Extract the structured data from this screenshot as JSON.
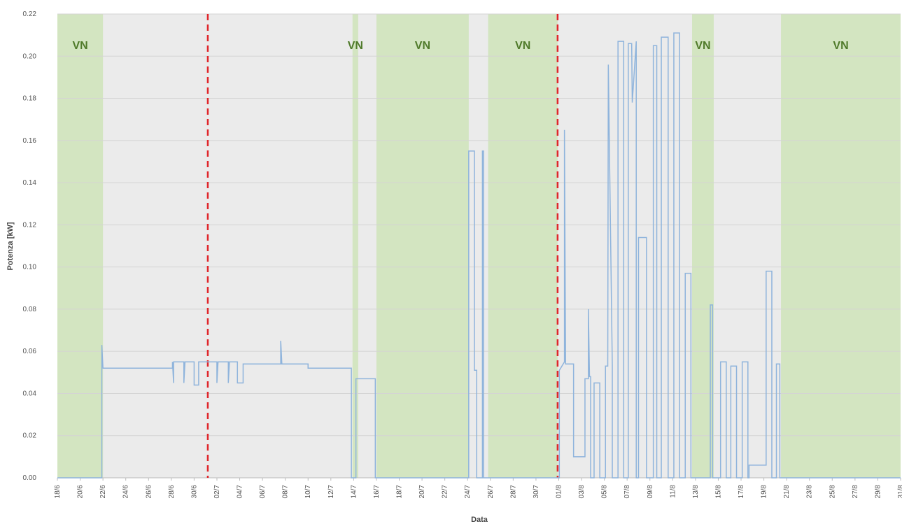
{
  "chart_data": {
    "type": "line",
    "y_label": "Potenza [kW]",
    "x_label": "Data",
    "xlim": [
      0,
      74
    ],
    "ylim": [
      0,
      0.22
    ],
    "yticks": [
      {
        "value": 0,
        "label": "0.00"
      },
      {
        "value": 0.02,
        "label": "0.02"
      },
      {
        "value": 0.04,
        "label": "0.04"
      },
      {
        "value": 0.06,
        "label": "0.06"
      },
      {
        "value": 0.08,
        "label": "0.08"
      },
      {
        "value": 0.1,
        "label": "0.10"
      },
      {
        "value": 0.12,
        "label": "0.12"
      },
      {
        "value": 0.14,
        "label": "0.14"
      },
      {
        "value": 0.16,
        "label": "0.16"
      },
      {
        "value": 0.18,
        "label": "0.18"
      },
      {
        "value": 0.2,
        "label": "0.20"
      },
      {
        "value": 0.22,
        "label": "0.22"
      }
    ],
    "xticks": [
      {
        "value": 0,
        "label": "18/6"
      },
      {
        "value": 2,
        "label": "20/6"
      },
      {
        "value": 4,
        "label": "22/6"
      },
      {
        "value": 6,
        "label": "24/6"
      },
      {
        "value": 8,
        "label": "26/6"
      },
      {
        "value": 10,
        "label": "28/6"
      },
      {
        "value": 12,
        "label": "30/6"
      },
      {
        "value": 14,
        "label": "02/7"
      },
      {
        "value": 16,
        "label": "04/7"
      },
      {
        "value": 18,
        "label": "06/7"
      },
      {
        "value": 20,
        "label": "08/7"
      },
      {
        "value": 22,
        "label": "10/7"
      },
      {
        "value": 24,
        "label": "12/7"
      },
      {
        "value": 26,
        "label": "14/7"
      },
      {
        "value": 28,
        "label": "16/7"
      },
      {
        "value": 30,
        "label": "18/7"
      },
      {
        "value": 32,
        "label": "20/7"
      },
      {
        "value": 34,
        "label": "22/7"
      },
      {
        "value": 36,
        "label": "24/7"
      },
      {
        "value": 38,
        "label": "26/7"
      },
      {
        "value": 40,
        "label": "28/7"
      },
      {
        "value": 42,
        "label": "30/7"
      },
      {
        "value": 44,
        "label": "01/8"
      },
      {
        "value": 46,
        "label": "03/8"
      },
      {
        "value": 48,
        "label": "05/8"
      },
      {
        "value": 50,
        "label": "07/8"
      },
      {
        "value": 52,
        "label": "09/8"
      },
      {
        "value": 54,
        "label": "11/8"
      },
      {
        "value": 56,
        "label": "13/8"
      },
      {
        "value": 58,
        "label": "15/8"
      },
      {
        "value": 60,
        "label": "17/8"
      },
      {
        "value": 62,
        "label": "19/8"
      },
      {
        "value": 64,
        "label": "21/8"
      },
      {
        "value": 66,
        "label": "23/8"
      },
      {
        "value": 68,
        "label": "25/8"
      },
      {
        "value": 70,
        "label": "27/8"
      },
      {
        "value": 72,
        "label": "29/8"
      },
      {
        "value": 74,
        "label": "31/8"
      }
    ],
    "grid": true,
    "background": "#ebebeb",
    "region_color": "#d3e5c1",
    "label_color": "#4f7a2a",
    "regions": [
      {
        "start": 0,
        "end": 4,
        "label": "VN"
      },
      {
        "start": 25.9,
        "end": 26.4,
        "label": "VN"
      },
      {
        "start": 28,
        "end": 36.1,
        "label": "VN"
      },
      {
        "start": 37.8,
        "end": 43.9,
        "label": "VN"
      },
      {
        "start": 55.7,
        "end": 57.6,
        "label": "VN"
      },
      {
        "start": 63.5,
        "end": 74,
        "label": "VN"
      }
    ],
    "vlines": [
      13.2,
      43.9
    ],
    "vline_color": "#e0262b",
    "series": [
      {
        "color": "#8fb4dc",
        "x": [
          0,
          3.9,
          3.9,
          4,
          10.1,
          10.1,
          10.2,
          10.2,
          11.1,
          11.1,
          11.2,
          11.2,
          12,
          12,
          12.4,
          12.4,
          14,
          14,
          14.1,
          14.1,
          15,
          15,
          15.1,
          15.1,
          15.8,
          15.8,
          16.3,
          16.3,
          19.6,
          19.6,
          19.7,
          22,
          22,
          25.8,
          25.8,
          26.2,
          26.2,
          27.9,
          27.9,
          36.1,
          36.1,
          36.6,
          36.6,
          36.8,
          36.8,
          37.3,
          37.3,
          37.4,
          37.4,
          44.05,
          44.05,
          44.5,
          44.5,
          44.6,
          45.3,
          45.3,
          46.3,
          46.3,
          46.6,
          46.6,
          46.7,
          46.8,
          46.8,
          47.1,
          47.1,
          47.6,
          47.6,
          48.1,
          48.1,
          48.3,
          48.35,
          48.7,
          48.7,
          49.2,
          49.2,
          49.7,
          49.7,
          50.1,
          50.1,
          50.4,
          50.45,
          50.8,
          50.8,
          51,
          51,
          51.7,
          51.7,
          52.3,
          52.3,
          52.6,
          52.6,
          53,
          53,
          53.6,
          53.6,
          54.1,
          54.1,
          54.6,
          54.6,
          55.1,
          55.1,
          55.6,
          55.6,
          57.3,
          57.3,
          57.5,
          57.5,
          58.2,
          58.2,
          58.7,
          58.7,
          59.1,
          59.1,
          59.6,
          59.6,
          60.1,
          60.1,
          60.6,
          60.6,
          60.7,
          60.7,
          62.2,
          62.2,
          62.7,
          62.7,
          63.1,
          63.1,
          63.4,
          63.4,
          74
        ],
        "values": [
          0,
          0,
          0.063,
          0.052,
          0.052,
          0.055,
          0.045,
          0.055,
          0.055,
          0.045,
          0.055,
          0.055,
          0.055,
          0.044,
          0.044,
          0.055,
          0.055,
          0.045,
          0.055,
          0.055,
          0.055,
          0.045,
          0.055,
          0.055,
          0.055,
          0.045,
          0.045,
          0.054,
          0.054,
          0.065,
          0.054,
          0.054,
          0.052,
          0.052,
          0,
          0,
          0.047,
          0.047,
          0,
          0,
          0.155,
          0.155,
          0.051,
          0.051,
          0,
          0,
          0.155,
          0.155,
          0,
          0,
          0.051,
          0.055,
          0.165,
          0.054,
          0.054,
          0.01,
          0.01,
          0.047,
          0.047,
          0.08,
          0.048,
          0.048,
          0,
          0,
          0.045,
          0.045,
          0,
          0,
          0.053,
          0.053,
          0.196,
          0.053,
          0,
          0,
          0.207,
          0.207,
          0,
          0,
          0.206,
          0.206,
          0.178,
          0.207,
          0,
          0,
          0.114,
          0.114,
          0,
          0,
          0.205,
          0.205,
          0,
          0,
          0.209,
          0.209,
          0,
          0,
          0.211,
          0.211,
          0,
          0,
          0.097,
          0.097,
          0,
          0,
          0.082,
          0.082,
          0,
          0,
          0.055,
          0.055,
          0,
          0,
          0.053,
          0.053,
          0,
          0,
          0.055,
          0.055,
          0,
          0,
          0.006,
          0.006,
          0.098,
          0.098,
          0,
          0,
          0.054,
          0.054,
          0,
          0
        ]
      }
    ]
  }
}
